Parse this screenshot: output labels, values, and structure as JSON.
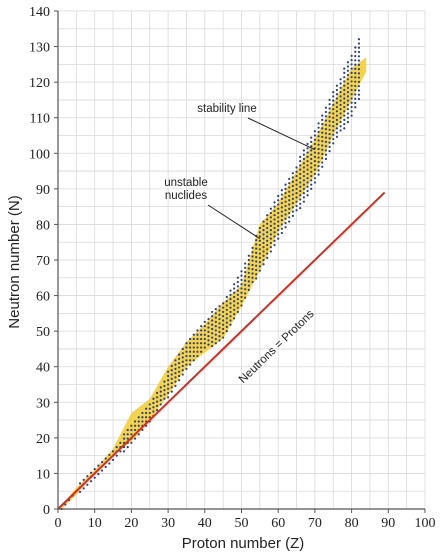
{
  "chart_data": {
    "type": "scatter",
    "title": "",
    "xlabel": "Proton number (Z)",
    "ylabel": "Neutron number (N)",
    "xlim": [
      0,
      100
    ],
    "ylim": [
      0,
      140
    ],
    "x_ticks": [
      "0",
      "10",
      "20",
      "30",
      "40",
      "50",
      "60",
      "70",
      "80",
      "90",
      "100"
    ],
    "y_ticks": [
      "0",
      "10",
      "20",
      "30",
      "40",
      "50",
      "60",
      "70",
      "80",
      "90",
      "100",
      "110",
      "120",
      "130",
      "140"
    ],
    "grid": true,
    "colors": {
      "band": "#f4cf3a",
      "dots": "#2b3f7a",
      "reference_line": "#dd2a1e",
      "grid": "#d9d9d9",
      "axis": "#555555"
    },
    "band_of_nuclides": {
      "upper": [
        [
          1,
          1
        ],
        [
          5,
          6
        ],
        [
          10,
          11
        ],
        [
          15,
          17
        ],
        [
          20,
          27
        ],
        [
          25,
          31
        ],
        [
          30,
          40
        ],
        [
          35,
          47
        ],
        [
          40,
          52
        ],
        [
          45,
          58
        ],
        [
          50,
          63
        ],
        [
          55,
          80
        ],
        [
          60,
          86
        ],
        [
          65,
          95
        ],
        [
          70,
          104
        ],
        [
          75,
          114
        ],
        [
          80,
          124
        ],
        [
          84,
          127
        ]
      ],
      "lower": [
        [
          1,
          0
        ],
        [
          5,
          4
        ],
        [
          10,
          10
        ],
        [
          15,
          15
        ],
        [
          20,
          19
        ],
        [
          25,
          25
        ],
        [
          30,
          32
        ],
        [
          35,
          40
        ],
        [
          40,
          44
        ],
        [
          45,
          48
        ],
        [
          50,
          57
        ],
        [
          55,
          67
        ],
        [
          60,
          78
        ],
        [
          65,
          86
        ],
        [
          70,
          94
        ],
        [
          75,
          105
        ],
        [
          80,
          115
        ],
        [
          84,
          123
        ]
      ]
    },
    "stable_nuclides_path": [
      [
        1,
        0
      ],
      [
        5,
        5
      ],
      [
        10,
        10
      ],
      [
        15,
        15
      ],
      [
        20,
        21
      ],
      [
        25,
        27
      ],
      [
        30,
        35
      ],
      [
        35,
        43
      ],
      [
        40,
        49
      ],
      [
        45,
        53
      ],
      [
        50,
        62
      ],
      [
        55,
        73
      ],
      [
        60,
        82
      ],
      [
        65,
        90
      ],
      [
        70,
        99
      ],
      [
        75,
        110
      ],
      [
        80,
        119
      ],
      [
        83,
        126
      ]
    ],
    "reference_line": {
      "label": "Neutrons = Protons",
      "from": [
        0,
        0
      ],
      "to": [
        89,
        89
      ]
    },
    "annotations": [
      {
        "text": "stability line",
        "arrow_to": [
          70,
          101
        ]
      },
      {
        "lines": [
          "unstable",
          "nuclides"
        ],
        "arrow_to": [
          55,
          76
        ]
      }
    ]
  }
}
